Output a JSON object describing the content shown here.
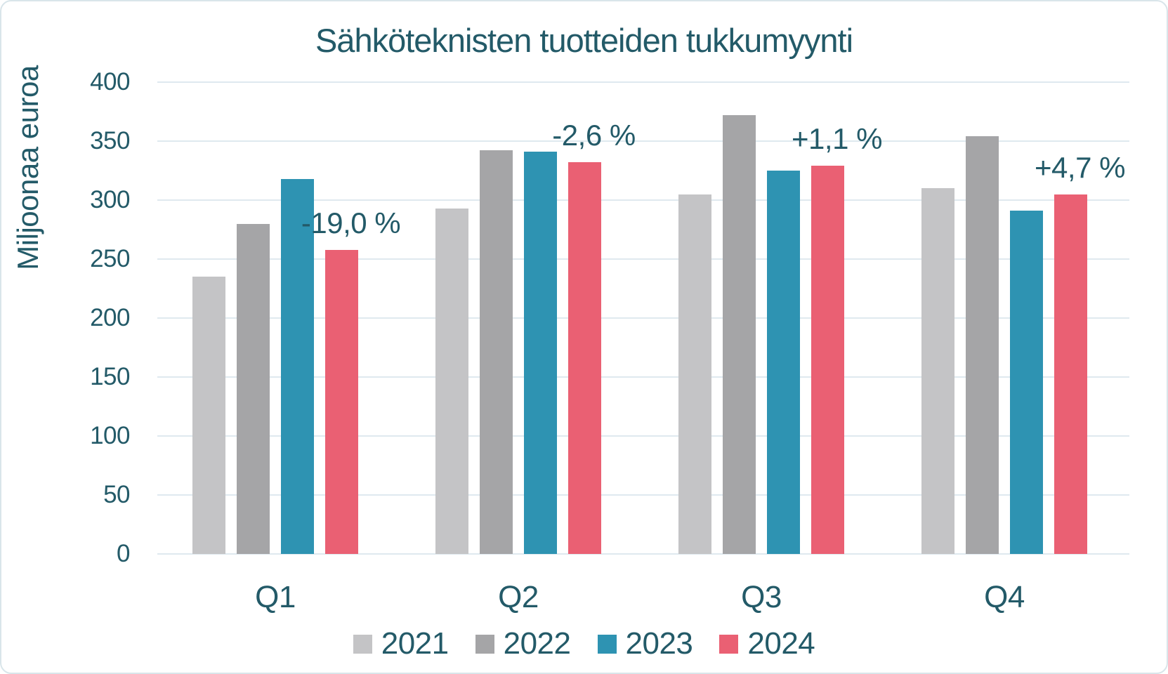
{
  "figure": {
    "kind": "static bar chart image"
  },
  "colors": {
    "background": "#ffffff",
    "border": "#d9e5ea",
    "grid": "#dfe9ef",
    "text": "#235a68",
    "series_2021": "#c4c4c6",
    "series_2022": "#a5a5a7",
    "series_2023": "#2e93b2",
    "series_2024": "#ea6073"
  },
  "chart_data": {
    "type": "bar",
    "title": "Sähköteknisten tuotteiden tukkumyynti",
    "xlabel": "",
    "ylabel": "Miljoonaa euroa",
    "categories": [
      "Q1",
      "Q2",
      "Q3",
      "Q4"
    ],
    "series": [
      {
        "name": "2021",
        "color": "#c4c4c6",
        "values": [
          235,
          293,
          305,
          310
        ]
      },
      {
        "name": "2022",
        "color": "#a5a5a7",
        "values": [
          280,
          342,
          372,
          354
        ]
      },
      {
        "name": "2023",
        "color": "#2e93b2",
        "values": [
          318,
          341,
          325,
          291
        ]
      },
      {
        "name": "2024",
        "color": "#ea6073",
        "values": [
          258,
          332,
          329,
          305
        ]
      }
    ],
    "annotations": [
      {
        "category": "Q1",
        "series": "2024",
        "text": "-19,0 %"
      },
      {
        "category": "Q2",
        "series": "2024",
        "text": "-2,6 %"
      },
      {
        "category": "Q3",
        "series": "2024",
        "text": "+1,1 %"
      },
      {
        "category": "Q4",
        "series": "2024",
        "text": "+4,7 %"
      }
    ],
    "ylim": [
      0,
      400
    ],
    "yticks": [
      0,
      50,
      100,
      150,
      200,
      250,
      300,
      350,
      400
    ],
    "grid": true,
    "legend_position": "bottom"
  }
}
